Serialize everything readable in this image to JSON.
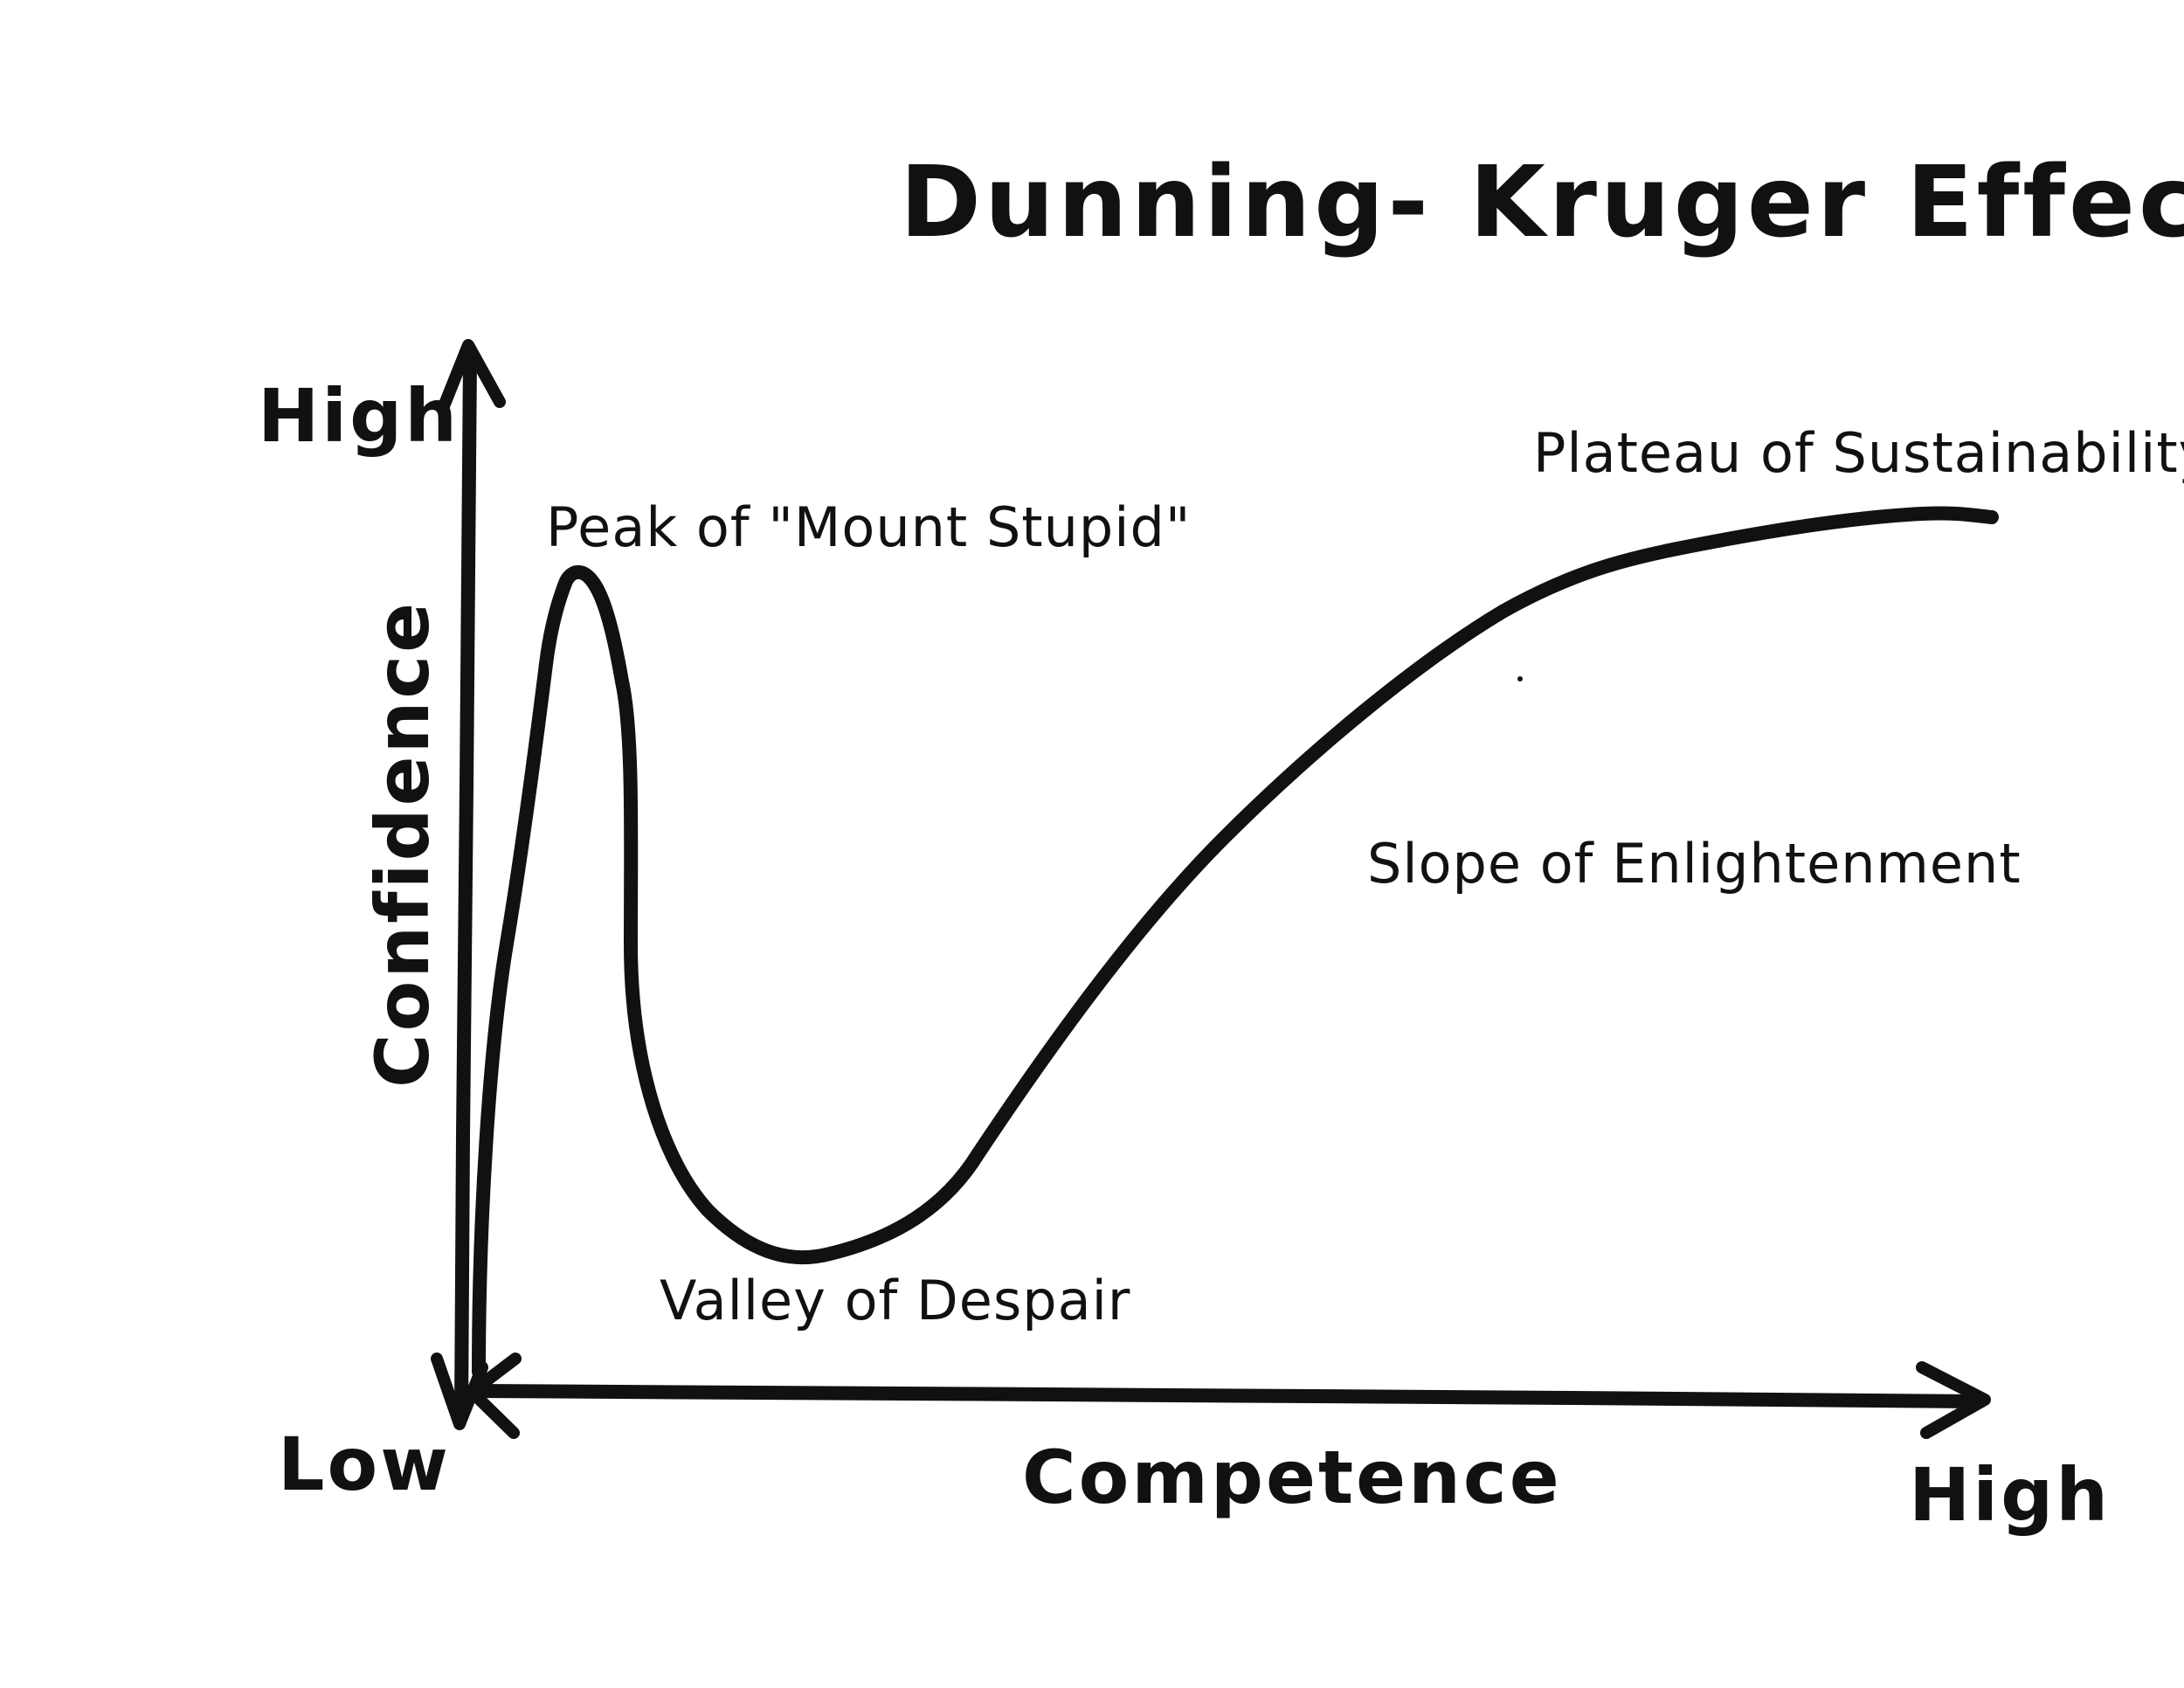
{
  "title": "Dunning- Kruger Effect",
  "y_axis": {
    "label": "Confidence",
    "high_label": "High",
    "low_label": "Low"
  },
  "x_axis": {
    "label": "Competence",
    "high_label": "High"
  },
  "annotations": {
    "peak": "Peak of \"Mount Stupid\"",
    "valley": "Valley of Despair",
    "slope": "Slope of Enlightenment",
    "plateau": "Plateau of Sustainability"
  },
  "colors": {
    "ink": "#111111",
    "paper": "#ffffff"
  }
}
